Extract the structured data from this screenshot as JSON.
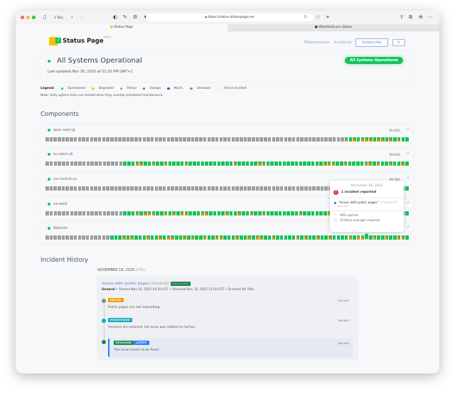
{
  "browser": {
    "tabs_count": "2 Tabs",
    "url": "https://status.statuspage.me",
    "tabs": [
      {
        "label": "Status Page"
      },
      {
        "label": "WhoHosts.pro Status"
      }
    ]
  },
  "header": {
    "logo_text": "Status Page",
    "logo_sup": "hosted",
    "nav": {
      "maintenance": "Maintenance",
      "incidents": "Incidents",
      "subscribe": "Subscribe",
      "settings_icon": "gear-icon"
    }
  },
  "hero": {
    "title": "All Systems Operational",
    "last_updated": "Last updated Nov 26, 2025 at 01:23 PM GMT+1",
    "badge": "All Systems Operational"
  },
  "legend": {
    "label": "Legend:",
    "items": [
      {
        "label": "Operational",
        "color": "#16c35a"
      },
      {
        "label": "Degraded",
        "color": "#f5c400"
      },
      {
        "label": "Partial",
        "color": "#f08c00"
      },
      {
        "label": "Outage",
        "color": "#e03131"
      },
      {
        "label": "Maint.",
        "color": "#495a6e"
      },
      {
        "label": "Unknown",
        "color": "#8a8a8a"
      },
      {
        "label": "Active Incident",
        "color": "#fbe9d6"
      }
    ],
    "note": "Note: Daily uptime ticks are shaded when they overlap scheduled maintenance."
  },
  "components_title": "Components",
  "components": [
    {
      "name": "apac-east-jp",
      "uptime": "99.46%",
      "ticks": "uuuuuuuuuuuuuuuuuuuuuuuuuuuuuuuuuuuuuuuuuuuuuuuuuuuuuuuuuuuuuuuuuuuuuuuuuupopopppoppopopoo"
    },
    {
      "name": "eu-west-uk",
      "uptime": "99.63%",
      "ticks": "uuuuuuuuuuuuuuuuuuuoooppoopoopoooopooooooooooopoooooppoooooooooooooopppoopooooppopoopoopo"
    },
    {
      "name": "na-central-us",
      "uptime": "99.78%",
      "ticks": "uuuuuuuuuuuuuuuuuuuuuuuuuuuuuuuuuuuuuuuuuuuuuuuuuuuuuuuuuuuuuuuuuuuuuuuuuuuuuuuuuuuuuooooo"
    },
    {
      "name": "na-west",
      "uptime": "",
      "ticks": "uuuuuuuuuuuuuuuuuuuooopopppoopopoppoooppoooopoopoopoopoooooooopoooooopopooopoooppopoooppo"
    },
    {
      "name": "Website",
      "uptime": "",
      "ticks": "uuuuuuuuuuuuuuuuooopopooopoopoppoopopoopooppooopoopoppoopooooopopoopoopoooopoppoopoopooppo"
    }
  ],
  "tooltip": {
    "date": "November 16, 2025",
    "headline": "1 incident reported",
    "incident": "\"Issues with public pages\"",
    "incident_group": "(\"General\")",
    "incident_status": "Resolved",
    "uptime": "99% uptime",
    "response": "1534ms average response"
  },
  "history": {
    "title": "Incident History",
    "date": "NOVEMBER 16, 2025",
    "tz": "(UTC)",
    "incident": {
      "title": "Issues with public pages",
      "group": "(General)",
      "status": "RESOLVED",
      "meta_group": "General",
      "meta": " • Started Nov 16, 2025 04:50 UTC • Resolved Nov 16, 2025 11:50 UTC • Duration 6h 59m",
      "updates": [
        {
          "badge": "INITIAL",
          "badge_color": "#f59f00",
          "dot_color": "#8a8a8a",
          "text": "Public pages are not responding.",
          "ago": "1W AGO"
        },
        {
          "badge": "MONITORING",
          "badge_color": "#15aabf",
          "dot_color": "#15aabf",
          "text": "Services are restored; the issue was related to caches.",
          "ago": "1W AGO"
        },
        {
          "badge": "RESOLVED",
          "badge2": "LATEST",
          "badge_color": "#198754",
          "badge2_color": "#2f7df6",
          "dot_color": "#198754",
          "text": "The issue seems to be fixed.",
          "ago": "1W AGO"
        }
      ]
    }
  }
}
